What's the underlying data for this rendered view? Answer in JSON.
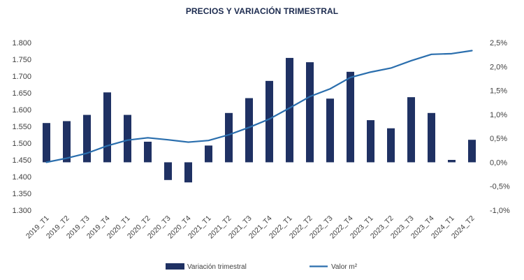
{
  "chart_data": {
    "type": "bar+line",
    "title": "PRECIOS Y VARIACIÓN TRIMESTRAL",
    "categories": [
      "2019_T1",
      "2019_T2",
      "2019_T3",
      "2019_T4",
      "2020_T1",
      "2020_T2",
      "2020_T3",
      "2020_T4",
      "2021_T1",
      "2021_T2",
      "2021_T3",
      "2021_T4",
      "2022_T1",
      "2022_T2",
      "2022_T3",
      "2022_T4",
      "2023_T1",
      "2023_T2",
      "2023_T3",
      "2023_T4",
      "2024_T1",
      "2024_T2"
    ],
    "left_axis": {
      "min": 1300,
      "max": 1800,
      "ticks": [
        "1.300",
        "1.350",
        "1.400",
        "1.450",
        "1.500",
        "1.550",
        "1.600",
        "1.650",
        "1.700",
        "1.750",
        "1.800"
      ]
    },
    "right_axis": {
      "min": -1.0,
      "max": 2.5,
      "ticks": [
        "-1,0%",
        "-0,5%",
        "0,0%",
        "0,5%",
        "1,0%",
        "1,5%",
        "2,0%",
        "2,5%"
      ]
    },
    "series": [
      {
        "name": "Variación trimestral",
        "type": "bar",
        "axis": "right",
        "color": "#1f3163",
        "values": [
          0.82,
          0.86,
          0.99,
          1.46,
          0.99,
          0.43,
          -0.37,
          -0.42,
          0.35,
          1.03,
          1.34,
          1.7,
          2.18,
          2.09,
          1.33,
          1.89,
          0.88,
          0.71,
          1.36,
          1.03,
          0.05,
          0.47
        ]
      },
      {
        "name": "Valor m²",
        "type": "line",
        "axis": "left",
        "color": "#2a6ead",
        "values": [
          1443,
          1455,
          1470,
          1492,
          1509,
          1516,
          1510,
          1503,
          1508,
          1525,
          1547,
          1572,
          1605,
          1639,
          1662,
          1696,
          1712,
          1724,
          1746,
          1765,
          1767,
          1776
        ]
      }
    ],
    "legend": {
      "position": "bottom",
      "items": [
        "Variación trimestral",
        "Valor m²"
      ]
    },
    "grid": false
  }
}
